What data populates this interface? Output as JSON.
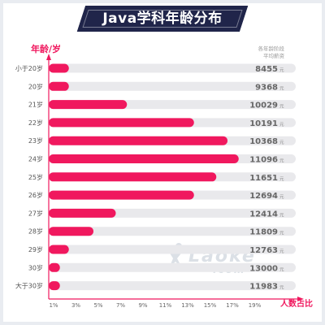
{
  "title": "Java学科年龄分布",
  "brand_colors": {
    "banner": "#20254a",
    "accent": "#f0185e",
    "track": "#e9e9ec"
  },
  "watermark": {
    "main": "Laoke",
    "sub": ".com"
  },
  "chart_data": {
    "type": "bar",
    "orientation": "horizontal",
    "ylabel": "年龄/岁",
    "xlabel": "人数占比",
    "salary_header": [
      "各年龄阶段",
      "平均薪资"
    ],
    "salary_unit": "元",
    "xticks": [
      "1%",
      "3%",
      "5%",
      "7%",
      "9%",
      "11%",
      "13%",
      "15%",
      "17%",
      "19%"
    ],
    "xlim": [
      0,
      20
    ],
    "categories": [
      "小于20岁",
      "20岁",
      "21岁",
      "22岁",
      "23岁",
      "24岁",
      "25岁",
      "26岁",
      "27岁",
      "28岁",
      "29岁",
      "30岁",
      "大于30岁"
    ],
    "values": [
      1.8,
      1.8,
      7.0,
      13.0,
      16.0,
      17.0,
      15.0,
      13.0,
      6.0,
      4.0,
      1.8,
      1.0,
      1.0
    ],
    "salaries": [
      "8455",
      "9368",
      "10029",
      "10191",
      "10368",
      "11096",
      "11651",
      "12694",
      "12414",
      "11809",
      "12763",
      "13000",
      "11983"
    ],
    "grid": false
  }
}
